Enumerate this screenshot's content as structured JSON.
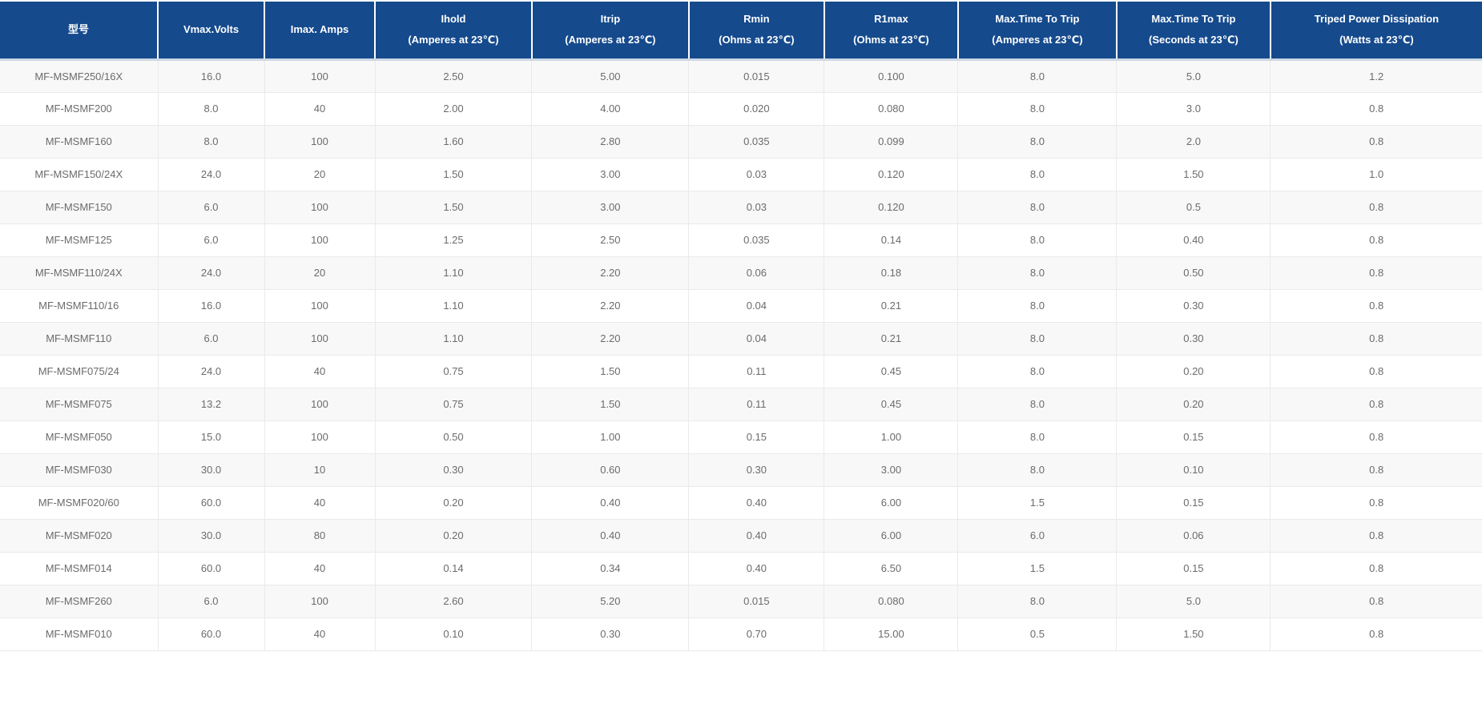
{
  "colors": {
    "header_bg": "#154a8d",
    "header_text": "#ffffff",
    "row_alt_bg": "#f8f8f8",
    "row_bg": "#ffffff",
    "grid_border": "#eaeaea",
    "header_divider": "#ccd8e4",
    "body_text": "#6b6b6b"
  },
  "chart_data": {
    "type": "table",
    "title": "",
    "layout": {
      "grid": true,
      "striped_rows": true,
      "header_rows": 1
    },
    "columns": [
      {
        "line1": "型号",
        "line2": ""
      },
      {
        "line1": "Vmax.Volts",
        "line2": ""
      },
      {
        "line1": "Imax. Amps",
        "line2": ""
      },
      {
        "line1": "Ihold",
        "line2": "(Amperes at 23℃)"
      },
      {
        "line1": "Itrip",
        "line2": "(Amperes at 23℃)"
      },
      {
        "line1": "Rmin",
        "line2": "(Ohms at 23℃)"
      },
      {
        "line1": "R1max",
        "line2": "(Ohms at 23℃)"
      },
      {
        "line1": "Max.Time To Trip",
        "line2": "(Amperes at 23℃)"
      },
      {
        "line1": "Max.Time To Trip",
        "line2": "(Seconds at 23℃)"
      },
      {
        "line1": "Triped Power Dissipation",
        "line2": "(Watts at 23℃)"
      }
    ],
    "rows": [
      [
        "MF-MSMF250/16X",
        "16.0",
        "100",
        "2.50",
        "5.00",
        "0.015",
        "0.100",
        "8.0",
        "5.0",
        "1.2"
      ],
      [
        "MF-MSMF200",
        "8.0",
        "40",
        "2.00",
        "4.00",
        "0.020",
        "0.080",
        "8.0",
        "3.0",
        "0.8"
      ],
      [
        "MF-MSMF160",
        "8.0",
        "100",
        "1.60",
        "2.80",
        "0.035",
        "0.099",
        "8.0",
        "2.0",
        "0.8"
      ],
      [
        "MF-MSMF150/24X",
        "24.0",
        "20",
        "1.50",
        "3.00",
        "0.03",
        "0.120",
        "8.0",
        "1.50",
        "1.0"
      ],
      [
        "MF-MSMF150",
        "6.0",
        "100",
        "1.50",
        "3.00",
        "0.03",
        "0.120",
        "8.0",
        "0.5",
        "0.8"
      ],
      [
        "MF-MSMF125",
        "6.0",
        "100",
        "1.25",
        "2.50",
        "0.035",
        "0.14",
        "8.0",
        "0.40",
        "0.8"
      ],
      [
        "MF-MSMF110/24X",
        "24.0",
        "20",
        "1.10",
        "2.20",
        "0.06",
        "0.18",
        "8.0",
        "0.50",
        "0.8"
      ],
      [
        "MF-MSMF110/16",
        "16.0",
        "100",
        "1.10",
        "2.20",
        "0.04",
        "0.21",
        "8.0",
        "0.30",
        "0.8"
      ],
      [
        "MF-MSMF110",
        "6.0",
        "100",
        "1.10",
        "2.20",
        "0.04",
        "0.21",
        "8.0",
        "0.30",
        "0.8"
      ],
      [
        "MF-MSMF075/24",
        "24.0",
        "40",
        "0.75",
        "1.50",
        "0.11",
        "0.45",
        "8.0",
        "0.20",
        "0.8"
      ],
      [
        "MF-MSMF075",
        "13.2",
        "100",
        "0.75",
        "1.50",
        "0.11",
        "0.45",
        "8.0",
        "0.20",
        "0.8"
      ],
      [
        "MF-MSMF050",
        "15.0",
        "100",
        "0.50",
        "1.00",
        "0.15",
        "1.00",
        "8.0",
        "0.15",
        "0.8"
      ],
      [
        "MF-MSMF030",
        "30.0",
        "10",
        "0.30",
        "0.60",
        "0.30",
        "3.00",
        "8.0",
        "0.10",
        "0.8"
      ],
      [
        "MF-MSMF020/60",
        "60.0",
        "40",
        "0.20",
        "0.40",
        "0.40",
        "6.00",
        "1.5",
        "0.15",
        "0.8"
      ],
      [
        "MF-MSMF020",
        "30.0",
        "80",
        "0.20",
        "0.40",
        "0.40",
        "6.00",
        "6.0",
        "0.06",
        "0.8"
      ],
      [
        "MF-MSMF014",
        "60.0",
        "40",
        "0.14",
        "0.34",
        "0.40",
        "6.50",
        "1.5",
        "0.15",
        "0.8"
      ],
      [
        "MF-MSMF260",
        "6.0",
        "100",
        "2.60",
        "5.20",
        "0.015",
        "0.080",
        "8.0",
        "5.0",
        "0.8"
      ],
      [
        "MF-MSMF010",
        "60.0",
        "40",
        "0.10",
        "0.30",
        "0.70",
        "15.00",
        "0.5",
        "1.50",
        "0.8"
      ]
    ]
  }
}
